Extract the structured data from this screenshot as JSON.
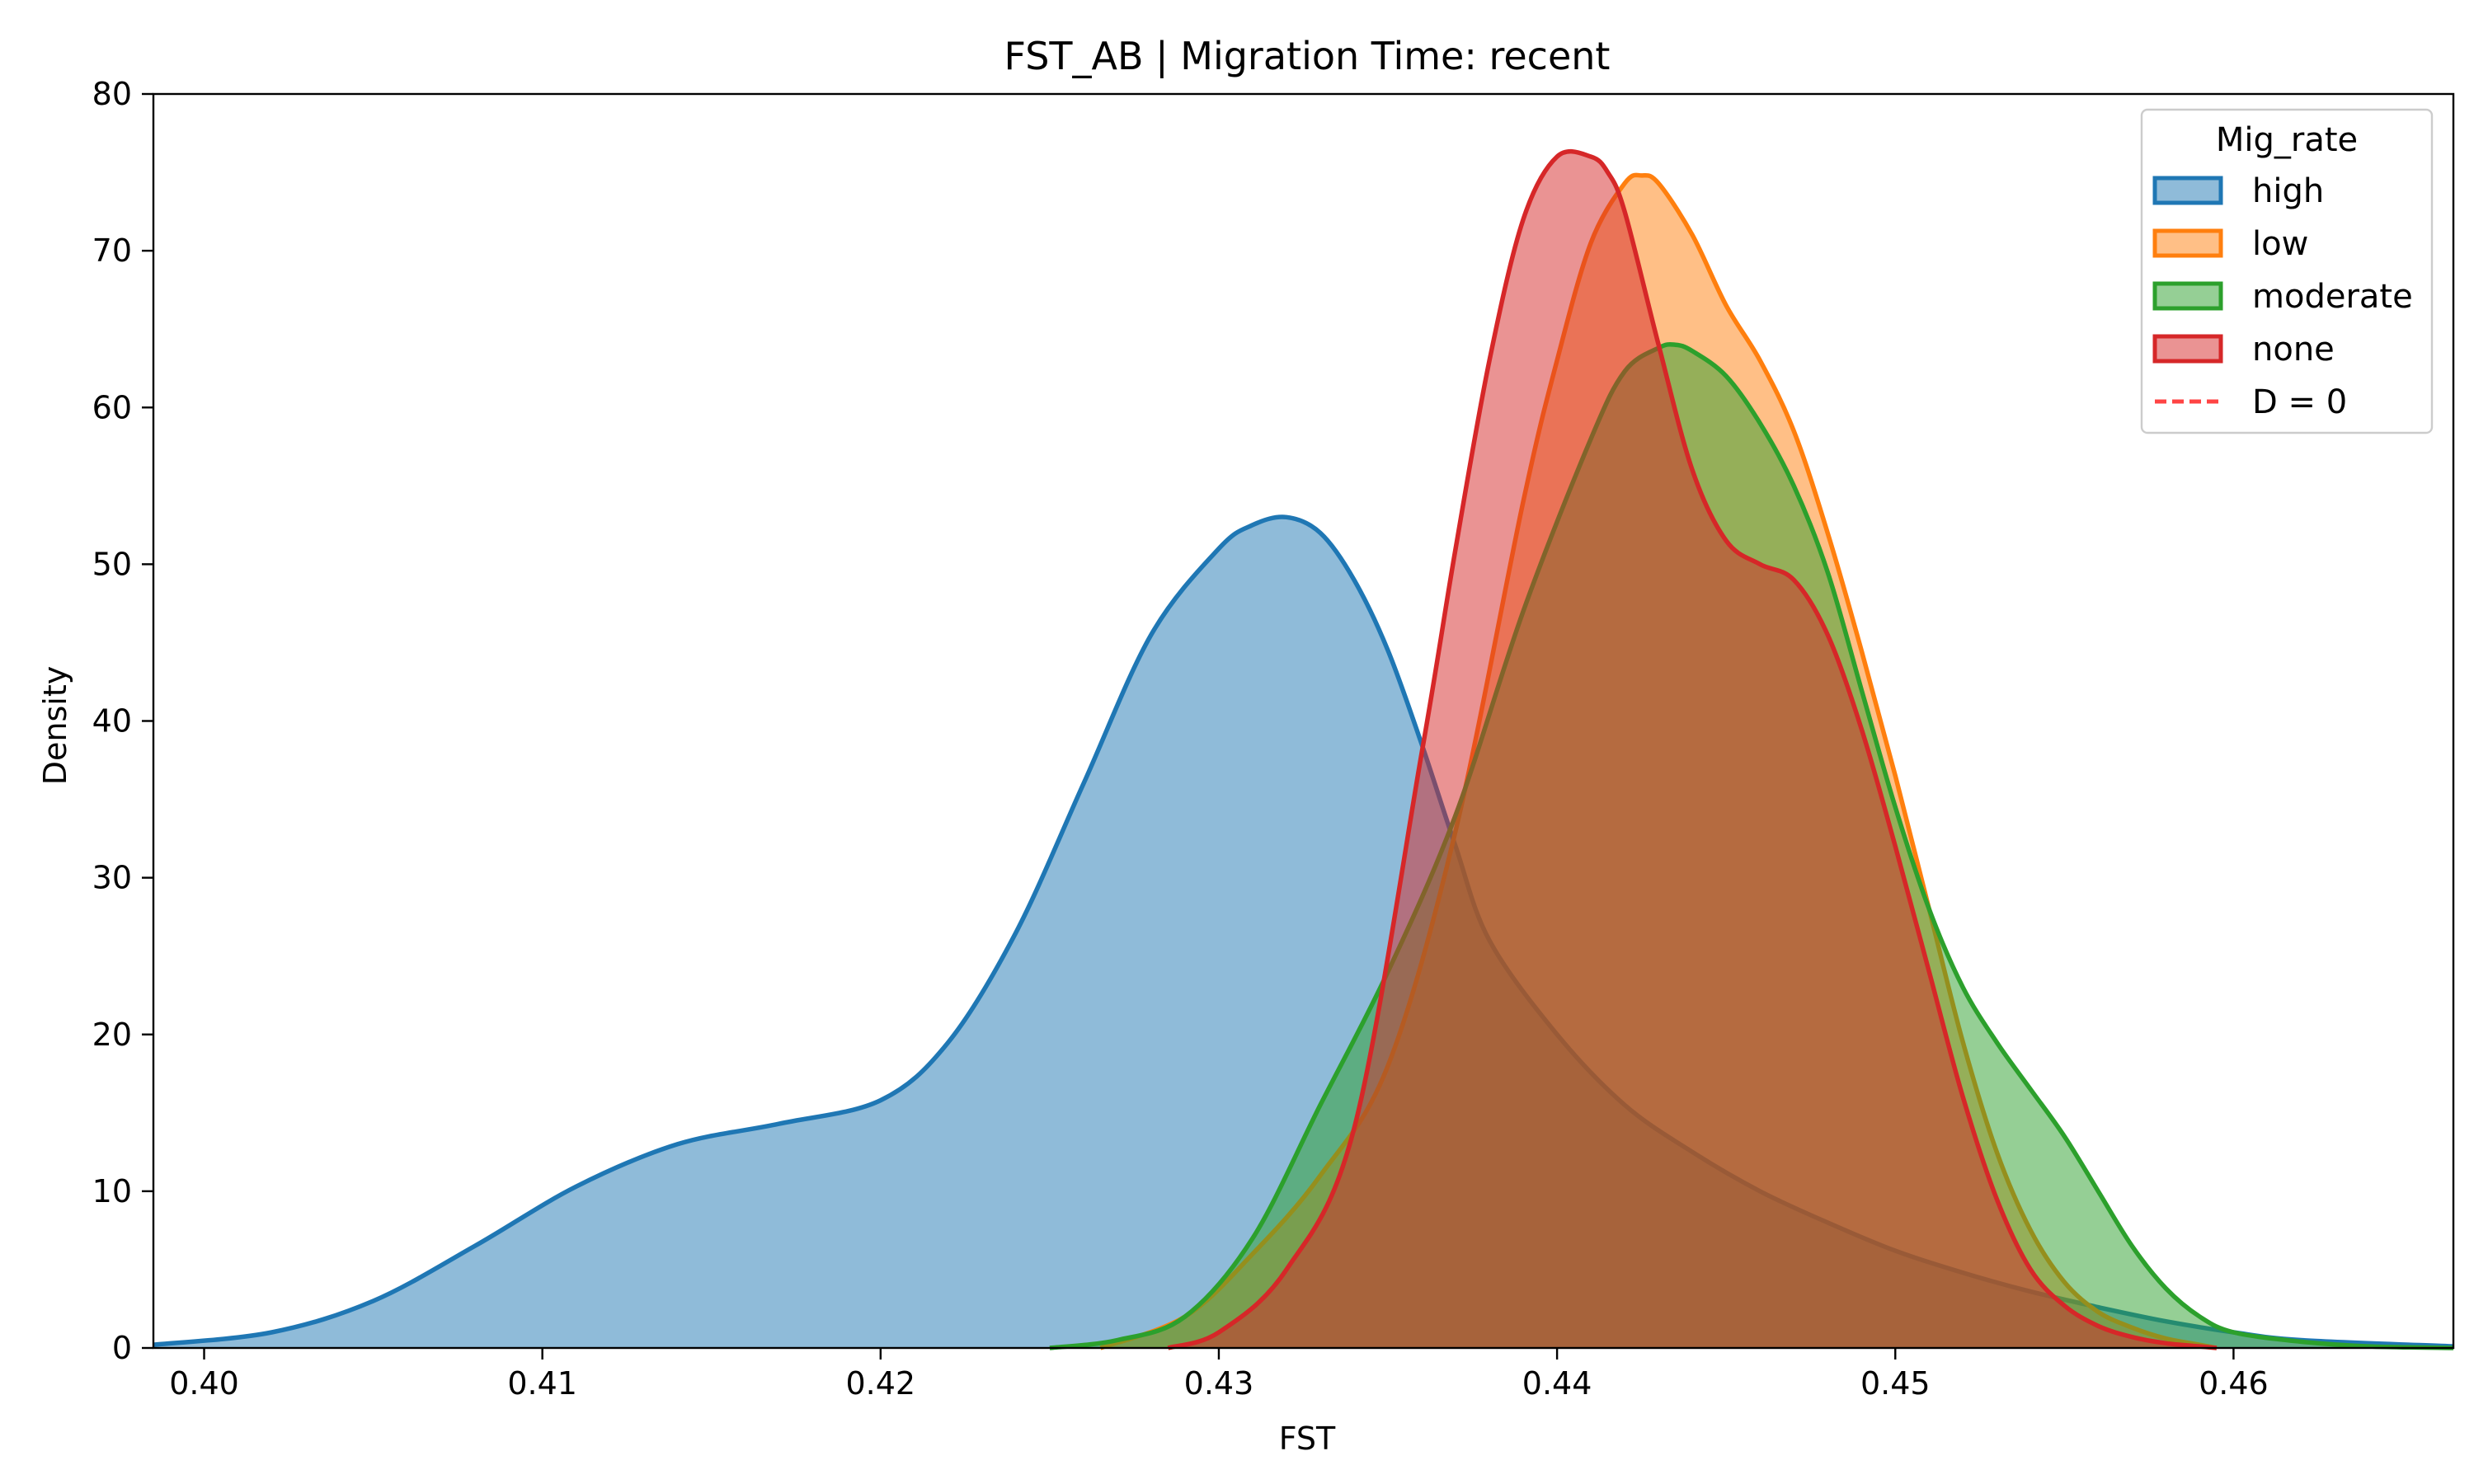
{
  "chart_data": {
    "type": "area",
    "title": "FST_AB | Migration Time: recent",
    "xlabel": "FST",
    "ylabel": "Density",
    "xlim": [
      0.3985,
      0.4665
    ],
    "ylim": [
      0,
      80
    ],
    "xticks": [
      0.4,
      0.41,
      0.42,
      0.43,
      0.44,
      0.45,
      0.46
    ],
    "xtick_labels": [
      "0.40",
      "0.41",
      "0.42",
      "0.43",
      "0.44",
      "0.45",
      "0.46"
    ],
    "yticks": [
      0,
      10,
      20,
      30,
      40,
      50,
      60,
      70,
      80
    ],
    "ytick_labels": [
      "0",
      "10",
      "20",
      "30",
      "40",
      "50",
      "60",
      "70",
      "80"
    ],
    "grid": false,
    "legend": {
      "title": "Mig_rate",
      "placement": "top-right",
      "entries": [
        {
          "label": "high",
          "color": "#1f77b4",
          "kind": "patch"
        },
        {
          "label": "low",
          "color": "#ff7f0e",
          "kind": "patch"
        },
        {
          "label": "moderate",
          "color": "#2ca02c",
          "kind": "patch"
        },
        {
          "label": "none",
          "color": "#d62728",
          "kind": "patch"
        },
        {
          "label": "D = 0",
          "color": "#ff4444",
          "kind": "dashed-line"
        }
      ]
    },
    "series": [
      {
        "name": "high",
        "color": "#1f77b4",
        "x": [
          0.3985,
          0.402,
          0.405,
          0.408,
          0.411,
          0.414,
          0.417,
          0.42,
          0.422,
          0.424,
          0.426,
          0.428,
          0.43,
          0.431,
          0.432,
          0.433,
          0.434,
          0.435,
          0.436,
          0.437,
          0.438,
          0.44,
          0.442,
          0.444,
          0.446,
          0.448,
          0.45,
          0.452,
          0.454,
          0.456,
          0.458,
          0.46,
          0.462,
          0.4665
        ],
        "y": [
          0.2,
          1.0,
          3.0,
          6.5,
          10.3,
          13.0,
          14.3,
          15.8,
          19.5,
          26.5,
          36.0,
          45.5,
          51.0,
          52.5,
          53.0,
          52.0,
          49.0,
          44.5,
          38.5,
          32.0,
          26.0,
          20.0,
          15.5,
          12.5,
          10.0,
          8.0,
          6.2,
          4.8,
          3.6,
          2.6,
          1.7,
          1.0,
          0.5,
          0.1
        ]
      },
      {
        "name": "low",
        "color": "#ff7f0e",
        "x": [
          0.4265,
          0.429,
          0.431,
          0.433,
          0.435,
          0.437,
          0.439,
          0.44,
          0.441,
          0.442,
          0.4425,
          0.443,
          0.444,
          0.445,
          0.446,
          0.447,
          0.448,
          0.449,
          0.45,
          0.451,
          0.452,
          0.453,
          0.454,
          0.455,
          0.456,
          0.457,
          0.458,
          0.459,
          0.4595
        ],
        "y": [
          0.0,
          2.0,
          6.0,
          11.0,
          18.0,
          33.0,
          54.0,
          63.0,
          70.5,
          74.3,
          74.8,
          74.3,
          71.0,
          66.5,
          63.0,
          58.5,
          52.0,
          44.5,
          36.5,
          28.0,
          19.5,
          12.5,
          7.5,
          4.2,
          2.3,
          1.3,
          0.6,
          0.2,
          0.0
        ]
      },
      {
        "name": "moderate",
        "color": "#2ca02c",
        "x": [
          0.425,
          0.427,
          0.429,
          0.431,
          0.433,
          0.435,
          0.437,
          0.439,
          0.441,
          0.442,
          0.443,
          0.4435,
          0.444,
          0.445,
          0.446,
          0.447,
          0.448,
          0.449,
          0.45,
          0.451,
          0.452,
          0.453,
          0.454,
          0.455,
          0.456,
          0.457,
          0.458,
          0.459,
          0.46,
          0.462,
          0.464,
          0.4665
        ],
        "y": [
          0.0,
          0.5,
          2.0,
          7.0,
          15.5,
          24.0,
          34.0,
          47.0,
          58.0,
          62.3,
          63.8,
          64.0,
          63.6,
          62.0,
          59.0,
          55.0,
          49.5,
          42.0,
          34.5,
          28.0,
          23.0,
          19.5,
          16.5,
          13.5,
          10.0,
          6.5,
          3.8,
          2.0,
          1.0,
          0.4,
          0.1,
          0.0
        ]
      },
      {
        "name": "none",
        "color": "#d62728",
        "x": [
          0.4285,
          0.43,
          0.432,
          0.434,
          0.436,
          0.437,
          0.438,
          0.439,
          0.44,
          0.441,
          0.4415,
          0.442,
          0.443,
          0.444,
          0.445,
          0.446,
          0.447,
          0.448,
          0.449,
          0.45,
          0.451,
          0.452,
          0.453,
          0.454,
          0.455,
          0.456,
          0.457,
          0.458,
          0.459,
          0.4595
        ],
        "y": [
          0.0,
          1.0,
          5.0,
          14.0,
          38.0,
          51.0,
          63.0,
          72.0,
          76.0,
          76.0,
          75.0,
          72.5,
          64.0,
          56.0,
          51.5,
          50.0,
          49.0,
          45.5,
          39.5,
          32.0,
          24.0,
          16.0,
          9.5,
          5.0,
          2.7,
          1.4,
          0.7,
          0.3,
          0.1,
          0.0
        ]
      }
    ]
  }
}
